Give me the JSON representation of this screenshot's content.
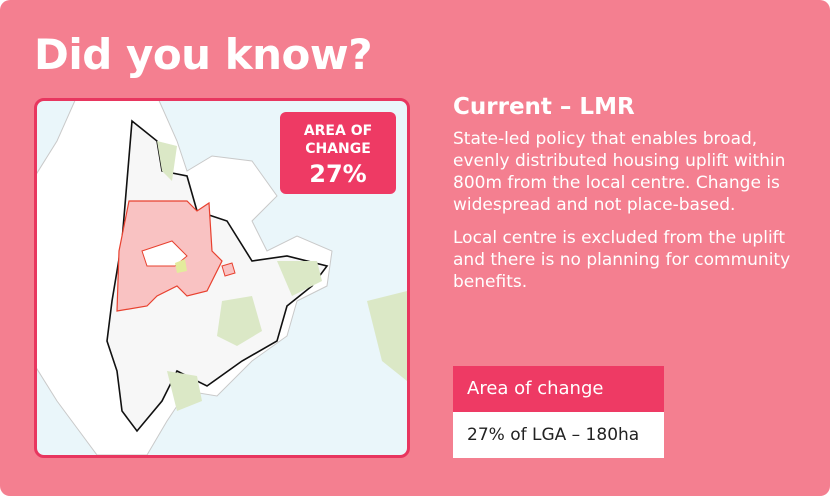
{
  "header": {
    "title": "Did you know?"
  },
  "map": {
    "badge": {
      "label": "AREA OF CHANGE",
      "value": "27%"
    }
  },
  "info": {
    "heading": "Current – LMR",
    "paragraphs": [
      "State-led policy that enables broad, evenly distributed housing uplift within 800m from the local centre. Change is widespread and not place-based.",
      "Local centre is excluded from the uplift and there is no planning for community benefits."
    ],
    "box": {
      "header": "Area of change",
      "value": "27% of LGA – 180ha"
    }
  }
}
